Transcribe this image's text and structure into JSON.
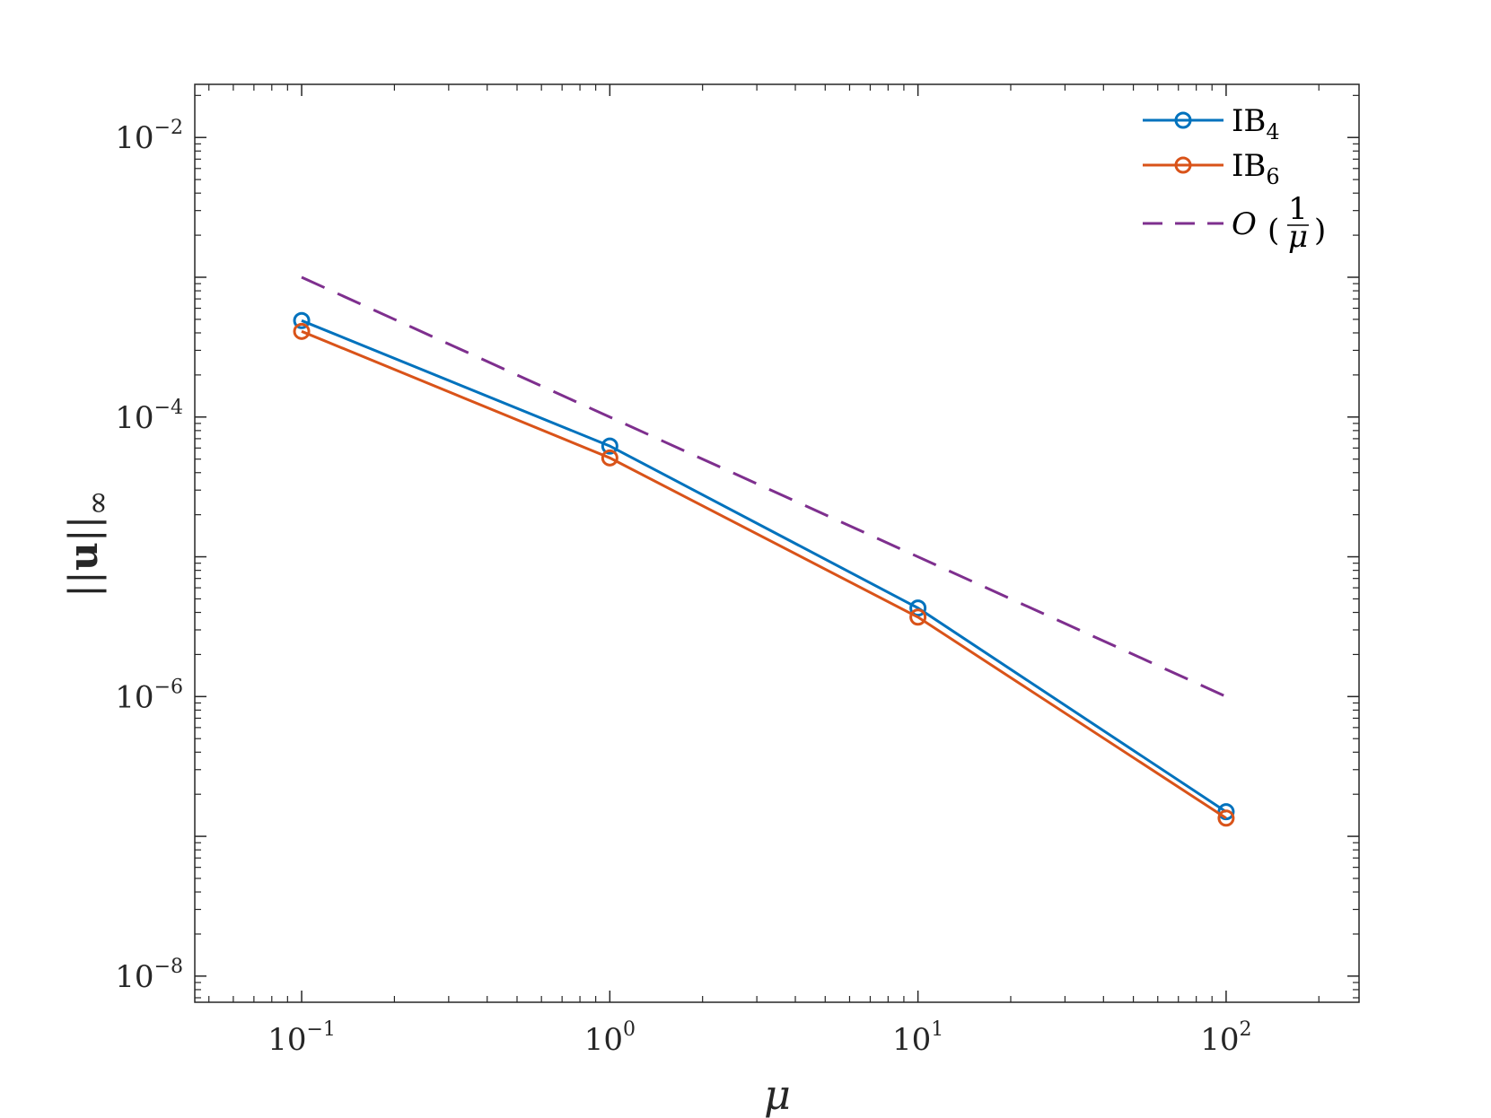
{
  "chart_data": {
    "type": "line",
    "xlabel": "μ",
    "ylabel": "||u||∞",
    "xscale": "log",
    "yscale": "log",
    "xlim": [
      0.045,
      270
    ],
    "ylim": [
      6.5e-09,
      0.024
    ],
    "xticks": [
      {
        "value": 0.1,
        "base": "10",
        "exp": "−1"
      },
      {
        "value": 1,
        "base": "10",
        "exp": "0"
      },
      {
        "value": 10,
        "base": "10",
        "exp": "1"
      },
      {
        "value": 100,
        "base": "10",
        "exp": "2"
      }
    ],
    "yticks": [
      {
        "value": 1e-08,
        "base": "10",
        "exp": "−8"
      },
      {
        "value": 1e-06,
        "base": "10",
        "exp": "−6"
      },
      {
        "value": 0.0001,
        "base": "10",
        "exp": "−4"
      },
      {
        "value": 0.01,
        "base": "10",
        "exp": "−2"
      }
    ],
    "grid": false,
    "legend_position": "top-right",
    "series": [
      {
        "name": "IB",
        "subscript": "4",
        "color": "#0072BD",
        "marker": "circle",
        "style": "solid",
        "x": [
          0.1,
          1,
          10,
          100
        ],
        "y": [
          0.00049,
          6.2e-05,
          4.3e-06,
          1.5e-07
        ]
      },
      {
        "name": "IB",
        "subscript": "6",
        "color": "#D95319",
        "marker": "circle",
        "style": "solid",
        "x": [
          0.1,
          1,
          10,
          100
        ],
        "y": [
          0.00041,
          5.1e-05,
          3.7e-06,
          1.35e-07
        ]
      },
      {
        "name": "O",
        "fraction_num": "1",
        "fraction_den": "μ",
        "color": "#7E2F8E",
        "marker": "none",
        "style": "dashed",
        "x": [
          0.1,
          100
        ],
        "y": [
          0.001,
          1e-06
        ]
      }
    ]
  }
}
